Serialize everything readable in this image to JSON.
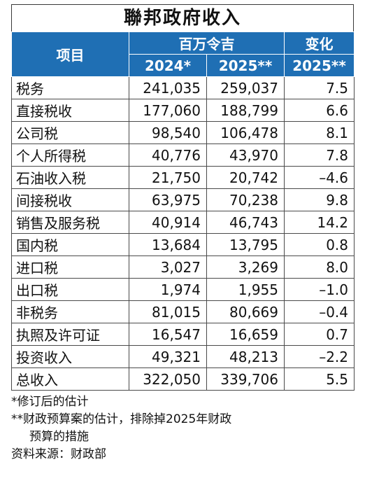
{
  "title": "聯邦政府收入",
  "header": {
    "item": "项目",
    "unit_group": "百万令吉",
    "change_group": "变化",
    "years": [
      "2024*",
      "2025**",
      "2025**"
    ]
  },
  "rows": [
    {
      "label": "税务",
      "y2024": "241,035",
      "y2025": "259,037",
      "change": "7.5"
    },
    {
      "label": "直接税收",
      "y2024": "177,060",
      "y2025": "188,799",
      "change": "6.6"
    },
    {
      "label": "公司税",
      "y2024": "98,540",
      "y2025": "106,478",
      "change": "8.1"
    },
    {
      "label": "个人所得税",
      "y2024": "40,776",
      "y2025": "43,970",
      "change": "7.8"
    },
    {
      "label": "石油收入税",
      "y2024": "21,750",
      "y2025": "20,742",
      "change": "–4.6"
    },
    {
      "label": "间接税收",
      "y2024": "63,975",
      "y2025": "70,238",
      "change": "9.8"
    },
    {
      "label": "销售及服务税",
      "y2024": "40,914",
      "y2025": "46,743",
      "change": "14.2"
    },
    {
      "label": "国内税",
      "y2024": "13,684",
      "y2025": "13,795",
      "change": "0.8"
    },
    {
      "label": "进口税",
      "y2024": "3,027",
      "y2025": "3,269",
      "change": "8.0"
    },
    {
      "label": "出口税",
      "y2024": "1,974",
      "y2025": "1,955",
      "change": "–1.0"
    },
    {
      "label": "非税务",
      "y2024": "81,015",
      "y2025": "80,669",
      "change": "–0.4"
    },
    {
      "label": "执照及许可证",
      "y2024": "16,547",
      "y2025": "16,659",
      "change": "0.7"
    },
    {
      "label": "投资收入",
      "y2024": "49,321",
      "y2025": "48,213",
      "change": "–2.2"
    },
    {
      "label": "总收入",
      "y2024": "322,050",
      "y2025": "339,706",
      "change": "5.5"
    }
  ],
  "notes": {
    "note1": "*修订后的估计",
    "note2_line1": "**财政预算案的估计，排除掉2025年财政",
    "note2_line2": "预算的措施",
    "source": "资料来源：财政部"
  }
}
